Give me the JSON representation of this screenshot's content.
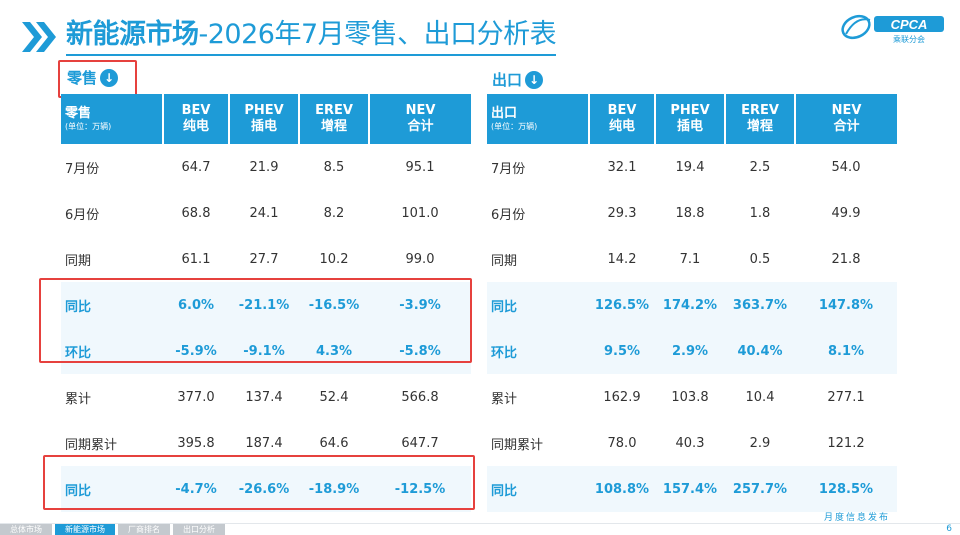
{
  "title": {
    "main": "新能源市场",
    "rest": "-2026年7月零售、出口分析表"
  },
  "logo": {
    "text": "CPCA",
    "subtext": "乘联分会"
  },
  "retail": {
    "label": "零售",
    "header": [
      "零售",
      "BEV\n纯电",
      "PHEV\n插电",
      "EREV\n增程",
      "NEV\n合计"
    ],
    "unit": "(单位：万辆)",
    "rows": [
      [
        "7月份",
        "64.7",
        "21.9",
        "8.5",
        "95.1"
      ],
      [
        "6月份",
        "68.8",
        "24.1",
        "8.2",
        "101.0"
      ],
      [
        "同期",
        "61.1",
        "27.7",
        "10.2",
        "99.0"
      ],
      [
        "同比",
        "6.0%",
        "-21.1%",
        "-16.5%",
        "-3.9%"
      ],
      [
        "环比",
        "-5.9%",
        "-9.1%",
        "4.3%",
        "-5.8%"
      ],
      [
        "累计",
        "377.0",
        "137.4",
        "52.4",
        "566.8"
      ],
      [
        "同期累计",
        "395.8",
        "187.4",
        "64.6",
        "647.7"
      ],
      [
        "同比",
        "-4.7%",
        "-26.6%",
        "-18.9%",
        "-12.5%"
      ]
    ]
  },
  "export": {
    "label": "出口",
    "header": [
      "出口",
      "BEV\n纯电",
      "PHEV\n插电",
      "EREV\n增程",
      "NEV\n合计"
    ],
    "unit": "(单位：万辆)",
    "rows": [
      [
        "7月份",
        "32.1",
        "19.4",
        "2.5",
        "54.0"
      ],
      [
        "6月份",
        "29.3",
        "18.8",
        "1.8",
        "49.9"
      ],
      [
        "同期",
        "14.2",
        "7.1",
        "0.5",
        "21.8"
      ],
      [
        "同比",
        "126.5%",
        "174.2%",
        "363.7%",
        "147.8%"
      ],
      [
        "环比",
        "9.5%",
        "2.9%",
        "40.4%",
        "8.1%"
      ],
      [
        "累计",
        "162.9",
        "103.8",
        "10.4",
        "277.1"
      ],
      [
        "同期累计",
        "78.0",
        "40.3",
        "2.9",
        "121.2"
      ],
      [
        "同比",
        "108.8%",
        "157.4%",
        "257.7%",
        "128.5%"
      ]
    ]
  },
  "footer": {
    "tabs": [
      "总体市场",
      "新能源市场",
      "厂商排名",
      "出口分析"
    ],
    "active_tab": "新能源市场",
    "text": "月度信息发布",
    "page": "6"
  },
  "colors": {
    "accent": "#1e9bd7",
    "highlight_row": "#f0f8fd",
    "red_box": "#e6413e"
  }
}
